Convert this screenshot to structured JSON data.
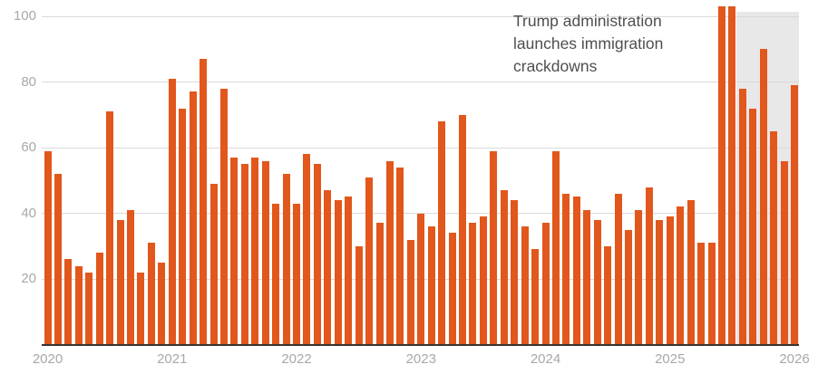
{
  "annotation": {
    "lines": [
      "Trump administration",
      "launches immigration",
      "crackdowns"
    ]
  },
  "chart_data": {
    "type": "bar",
    "title": "",
    "frequency": "monthly",
    "x_start": "2020-01",
    "x_end": "2026-01",
    "values_by_year": {
      "2020": [
        59,
        52,
        26,
        24,
        22,
        28,
        71,
        38,
        41,
        22,
        31,
        25
      ],
      "2021": [
        81,
        72,
        77,
        87,
        49,
        78,
        57,
        55,
        57,
        56,
        43,
        52
      ],
      "2022": [
        43,
        58,
        55,
        47,
        44,
        45,
        30,
        51,
        37,
        56,
        54,
        32
      ],
      "2023": [
        40,
        36,
        68,
        34,
        70,
        37,
        39,
        59,
        47,
        44,
        36,
        29
      ],
      "2024": [
        37,
        59,
        46,
        45,
        41,
        38,
        30,
        46,
        35,
        41,
        48,
        38
      ],
      "2025": [
        39,
        42,
        44,
        31,
        31,
        103,
        103,
        78,
        72,
        90,
        65,
        56
      ],
      "2026": [
        79
      ]
    },
    "y_ticks": [
      20,
      40,
      60,
      80,
      100
    ],
    "ylim": [
      0,
      104
    ],
    "x_tick_labels": [
      "2020",
      "2021",
      "2022",
      "2023",
      "2024",
      "2025",
      "2026"
    ],
    "grid": "horizontal",
    "legend": "none",
    "annotation_text": "Trump administration launches immigration crackdowns",
    "highlight_region": {
      "from": "2025-08",
      "to": "2026-01"
    },
    "colors": {
      "bar": "#e2571c",
      "gridline": "#d9d9d9",
      "axis_line": "#3a332e",
      "tick_label": "#a8a8a8",
      "annotation_text": "#4f4f4f",
      "highlight": "#e8e8e8"
    }
  }
}
